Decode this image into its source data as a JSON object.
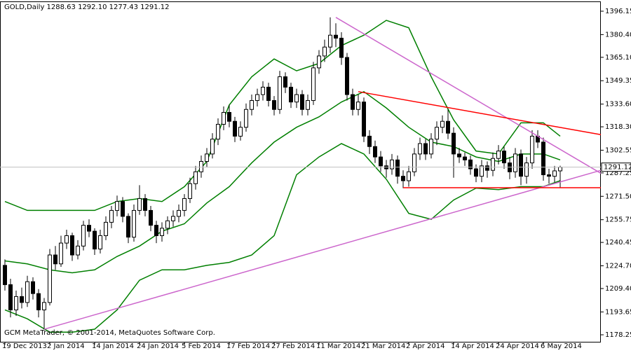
{
  "chart_data": {
    "type": "candlestick",
    "title": "GOLD,Daily  1288.63 1292.10 1277.43 1291.12",
    "footer": "GCM MetaTrader, © 2001-2014, MetaQuotes Software Corp.",
    "categories": [
      "19 Dec 2013",
      null,
      null,
      null,
      null,
      null,
      null,
      null,
      "2 Jan 2014",
      null,
      null,
      null,
      null,
      null,
      null,
      null,
      "14 Jan 2014",
      null,
      null,
      null,
      null,
      null,
      null,
      null,
      "24 Jan 2014",
      null,
      null,
      null,
      null,
      null,
      null,
      null,
      "5 Feb 2014",
      null,
      null,
      null,
      null,
      null,
      null,
      null,
      "17 Feb 2014",
      null,
      null,
      null,
      null,
      null,
      null,
      null,
      "27 Feb 2014",
      null,
      null,
      null,
      null,
      null,
      null,
      null,
      "11 Mar 2014",
      null,
      null,
      null,
      null,
      null,
      null,
      null,
      "21 Mar 2014",
      null,
      null,
      null,
      null,
      null,
      null,
      null,
      "2 Apr 2014",
      null,
      null,
      null,
      null,
      null,
      null,
      null,
      "14 Apr 2014",
      null,
      null,
      null,
      null,
      null,
      null,
      null,
      "24 Apr 2014",
      null,
      null,
      null,
      null,
      null,
      null,
      null,
      "6 May 2014",
      null,
      null,
      null
    ],
    "open": [
      1225,
      1212,
      1195,
      1204,
      1200,
      1214,
      1206,
      1195,
      1200,
      1232,
      1226,
      1240,
      1245,
      1232,
      1238,
      1252,
      1248,
      1236,
      1245,
      1254,
      1262,
      1268,
      1258,
      1244,
      1262,
      1270,
      1262,
      1252,
      1245,
      1250,
      1255,
      1258,
      1262,
      1270,
      1280,
      1288,
      1295,
      1300,
      1310,
      1320,
      1328,
      1322,
      1312,
      1318,
      1330,
      1336,
      1340,
      1345,
      1336,
      1330,
      1352,
      1345,
      1335,
      1340,
      1330,
      1336,
      1358,
      1366,
      1372,
      1380,
      1378,
      1365,
      1340,
      1330,
      1335,
      1312,
      1305,
      1298,
      1292,
      1290,
      1296,
      1285,
      1282,
      1288,
      1300,
      1307,
      1300,
      1310,
      1318,
      1322,
      1314,
      1300,
      1298,
      1296,
      1290,
      1285,
      1292,
      1289,
      1297,
      1302,
      1294,
      1288,
      1300,
      1285,
      1294,
      1312,
      1308,
      1286,
      1285,
      1288.63
    ],
    "high": [
      1229,
      1216,
      1208,
      1210,
      1218,
      1217,
      1209,
      1203,
      1236,
      1238,
      1245,
      1249,
      1247,
      1242,
      1255,
      1256,
      1250,
      1249,
      1258,
      1265,
      1272,
      1271,
      1260,
      1266,
      1279,
      1273,
      1265,
      1255,
      1254,
      1258,
      1262,
      1266,
      1273,
      1284,
      1292,
      1299,
      1304,
      1314,
      1324,
      1332,
      1333,
      1325,
      1322,
      1334,
      1340,
      1344,
      1349,
      1348,
      1339,
      1356,
      1355,
      1348,
      1344,
      1343,
      1340,
      1362,
      1370,
      1377,
      1392,
      1388,
      1382,
      1368,
      1344,
      1340,
      1338,
      1316,
      1309,
      1302,
      1296,
      1300,
      1299,
      1289,
      1292,
      1304,
      1311,
      1310,
      1314,
      1322,
      1326,
      1330,
      1318,
      1304,
      1301,
      1299,
      1293,
      1296,
      1295,
      1301,
      1306,
      1305,
      1298,
      1304,
      1303,
      1298,
      1316,
      1316,
      1311,
      1290,
      1292,
      1292.1
    ],
    "low": [
      1208,
      1190,
      1191,
      1196,
      1197,
      1202,
      1190,
      1182,
      1198,
      1222,
      1224,
      1236,
      1228,
      1229,
      1235,
      1244,
      1232,
      1233,
      1242,
      1250,
      1258,
      1254,
      1240,
      1241,
      1259,
      1258,
      1248,
      1240,
      1241,
      1246,
      1251,
      1254,
      1258,
      1267,
      1276,
      1284,
      1291,
      1297,
      1306,
      1316,
      1318,
      1308,
      1309,
      1315,
      1326,
      1332,
      1336,
      1332,
      1326,
      1327,
      1341,
      1331,
      1331,
      1326,
      1326,
      1333,
      1354,
      1362,
      1368,
      1372,
      1360,
      1336,
      1326,
      1326,
      1308,
      1300,
      1294,
      1288,
      1284,
      1286,
      1280,
      1277,
      1278,
      1285,
      1296,
      1296,
      1297,
      1306,
      1314,
      1310,
      1284,
      1294,
      1292,
      1286,
      1281,
      1281,
      1284,
      1285,
      1293,
      1290,
      1283,
      1284,
      1279,
      1280,
      1290,
      1304,
      1282,
      1280,
      1281,
      1277.43
    ],
    "close": [
      1212,
      1195,
      1204,
      1200,
      1214,
      1206,
      1195,
      1200,
      1232,
      1226,
      1240,
      1245,
      1232,
      1238,
      1252,
      1248,
      1236,
      1245,
      1254,
      1262,
      1268,
      1258,
      1244,
      1262,
      1270,
      1262,
      1252,
      1245,
      1250,
      1255,
      1258,
      1262,
      1270,
      1280,
      1288,
      1295,
      1300,
      1310,
      1320,
      1328,
      1322,
      1312,
      1318,
      1330,
      1336,
      1340,
      1345,
      1336,
      1330,
      1352,
      1345,
      1335,
      1340,
      1330,
      1336,
      1358,
      1366,
      1372,
      1380,
      1378,
      1365,
      1340,
      1330,
      1335,
      1312,
      1305,
      1298,
      1292,
      1290,
      1296,
      1285,
      1282,
      1288,
      1300,
      1307,
      1300,
      1310,
      1318,
      1322,
      1314,
      1300,
      1298,
      1296,
      1290,
      1285,
      1292,
      1289,
      1297,
      1302,
      1294,
      1288,
      1300,
      1285,
      1294,
      1312,
      1308,
      1286,
      1285,
      1288.63,
      1291.12
    ],
    "up_color": "#ffffff",
    "down_color": "#000000",
    "bands": [
      {
        "color": "#007f00",
        "x": [
          0,
          4,
          8,
          12,
          16,
          20,
          24,
          28,
          32,
          36,
          40,
          44,
          48,
          52,
          56,
          60,
          64,
          68,
          72,
          76,
          80,
          84,
          88,
          92,
          96,
          99
        ],
        "values": [
          1268,
          1262,
          1262,
          1262,
          1262,
          1268,
          1270,
          1268,
          1278,
          1295,
          1333,
          1352,
          1364,
          1356,
          1361,
          1373,
          1380,
          1390,
          1385,
          1352,
          1323,
          1302,
          1300,
          1321,
          1321,
          1312
        ]
      },
      {
        "color": "#007f00",
        "x": [
          0,
          4,
          8,
          12,
          16,
          20,
          24,
          28,
          32,
          36,
          40,
          44,
          48,
          52,
          56,
          60,
          64,
          68,
          72,
          76,
          80,
          84,
          88,
          92,
          96,
          99
        ],
        "values": [
          1228,
          1226,
          1222,
          1220,
          1222,
          1231,
          1238,
          1248,
          1253,
          1267,
          1278,
          1294,
          1308,
          1318,
          1325,
          1335,
          1342,
          1331,
          1318,
          1308,
          1305,
          1298,
          1295,
          1300,
          1300,
          1296
        ]
      },
      {
        "color": "#007f00",
        "x": [
          0,
          4,
          8,
          12,
          16,
          20,
          24,
          28,
          32,
          36,
          40,
          44,
          48,
          52,
          56,
          60,
          64,
          68,
          72,
          76,
          80,
          84,
          88,
          92,
          96,
          99
        ],
        "values": [
          1195,
          1189,
          1180,
          1180,
          1182,
          1195,
          1215,
          1222,
          1222,
          1225,
          1227,
          1232,
          1245,
          1286,
          1298,
          1307,
          1300,
          1283,
          1260,
          1256,
          1269,
          1277,
          1276,
          1278,
          1278,
          1282
        ]
      }
    ],
    "trendlines": [
      {
        "color": "#cc66cc",
        "x": [
          59,
          106.25
        ],
        "values": [
          1392,
          1287
        ]
      },
      {
        "color": "#cc66cc",
        "x": [
          7,
          106.25
        ],
        "values": [
          1182,
          1289
        ]
      },
      {
        "color": "#ff0000",
        "x": [
          63,
          106.25
        ],
        "values": [
          1342,
          1313
        ]
      },
      {
        "color": "#ff0000",
        "x": [
          71,
          106.25
        ],
        "values": [
          1277.3,
          1277.3
        ]
      }
    ],
    "xlim": [
      -0.875,
      106.25
    ],
    "ylim": [
      1173.53,
      1402.75
    ],
    "yticks": [
      1396.15,
      {
        "value": 1380.4,
        "label": "1380.40"
      },
      {
        "value": 1365.1,
        "label": "1365.10"
      },
      1349.35,
      {
        "value": 1333.6,
        "label": "1333.60"
      },
      {
        "value": 1318.3,
        "label": "1318.30"
      },
      1302.55,
      1287.25,
      {
        "value": 1271.5,
        "label": "1271.50"
      },
      1255.75,
      1240.45,
      {
        "value": 1224.7,
        "label": "1224.70"
      },
      {
        "value": 1209.4,
        "label": "1209.40"
      },
      1193.65,
      1178.25
    ]
  }
}
